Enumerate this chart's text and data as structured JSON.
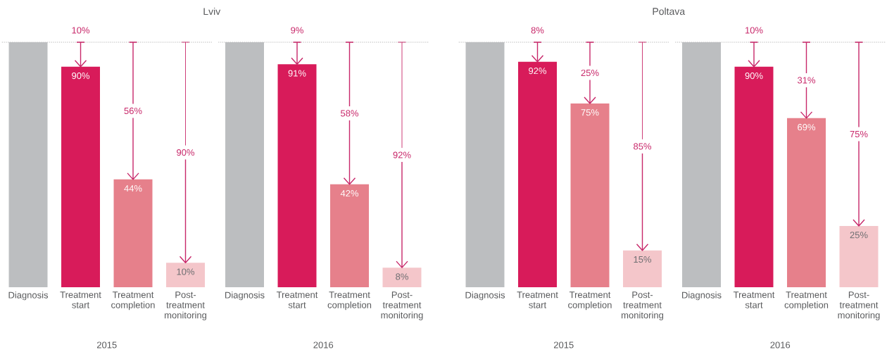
{
  "chart_data": [
    {
      "type": "bar",
      "title": "Lviv",
      "xlabel": "2015",
      "tick_labels": "x",
      "categories": [
        "Diagnosis",
        "Treatment start",
        "Treatment completion",
        "Post-treatment monitoring"
      ],
      "values": [
        100,
        90,
        44,
        10
      ],
      "colors": [
        "#bcbec0",
        "#d81b5a",
        "#e6808b",
        "#f4c6ca"
      ],
      "value_labels": [
        null,
        "90%",
        "44%",
        "10%"
      ],
      "ref_lines": [
        {
          "axis": "y",
          "value": 100,
          "line_style": "dotted",
          "color": "#b3b3b3"
        }
      ],
      "annotations": [
        {
          "text": "10%",
          "x": "Treatment start",
          "y": 90
        },
        {
          "text": "56%",
          "x": "Treatment completion",
          "y": 44
        },
        {
          "text": "90%",
          "x": "Post-treatment monitoring",
          "y": 10
        }
      ]
    },
    {
      "type": "bar",
      "xlabel": "2016",
      "tick_labels": "x",
      "categories": [
        "Diagnosis",
        "Treatment start",
        "Treatment completion",
        "Post-treatment monitoring"
      ],
      "values": [
        100,
        91,
        42,
        8
      ],
      "colors": [
        "#bcbec0",
        "#d81b5a",
        "#e6808b",
        "#f4c6ca"
      ],
      "value_labels": [
        null,
        "91%",
        "42%",
        "8%"
      ],
      "ref_lines": [
        {
          "axis": "y",
          "value": 100,
          "line_style": "dotted",
          "color": "#b3b3b3"
        }
      ],
      "annotations": [
        {
          "text": "9%",
          "x": "Treatment start",
          "y": 91
        },
        {
          "text": "58%",
          "x": "Treatment completion",
          "y": 42
        },
        {
          "text": "92%",
          "x": "Post-treatment monitoring",
          "y": 8
        }
      ]
    },
    {
      "type": "bar",
      "title": "Poltava",
      "xlabel": "2015",
      "tick_labels": "x",
      "categories": [
        "Diagnosis",
        "Treatment start",
        "Treatment completion",
        "Post-treatment monitoring"
      ],
      "values": [
        100,
        92,
        75,
        15
      ],
      "colors": [
        "#bcbec0",
        "#d81b5a",
        "#e6808b",
        "#f4c6ca"
      ],
      "value_labels": [
        null,
        "92%",
        "75%",
        "15%"
      ],
      "ref_lines": [
        {
          "axis": "y",
          "value": 100,
          "line_style": "dotted",
          "color": "#b3b3b3"
        }
      ],
      "annotations": [
        {
          "text": "8%",
          "x": "Treatment start",
          "y": 92
        },
        {
          "text": "25%",
          "x": "Treatment completion",
          "y": 75
        },
        {
          "text": "85%",
          "x": "Post-treatment monitoring",
          "y": 15
        }
      ]
    },
    {
      "type": "bar",
      "xlabel": "2016",
      "tick_labels": "x",
      "categories": [
        "Diagnosis",
        "Treatment start",
        "Treatment completion",
        "Post-treatment monitoring"
      ],
      "values": [
        100,
        90,
        69,
        25
      ],
      "colors": [
        "#bcbec0",
        "#d81b5a",
        "#e6808b",
        "#f4c6ca"
      ],
      "value_labels": [
        null,
        "90%",
        "69%",
        "25%"
      ],
      "ref_lines": [
        {
          "axis": "y",
          "value": 100,
          "line_style": "dotted",
          "color": "#b3b3b3"
        }
      ],
      "annotations": [
        {
          "text": "10%",
          "x": "Treatment start",
          "y": 90
        },
        {
          "text": "31%",
          "x": "Treatment completion",
          "y": 69
        },
        {
          "text": "75%",
          "x": "Post-treatment monitoring",
          "y": 25
        }
      ]
    }
  ]
}
